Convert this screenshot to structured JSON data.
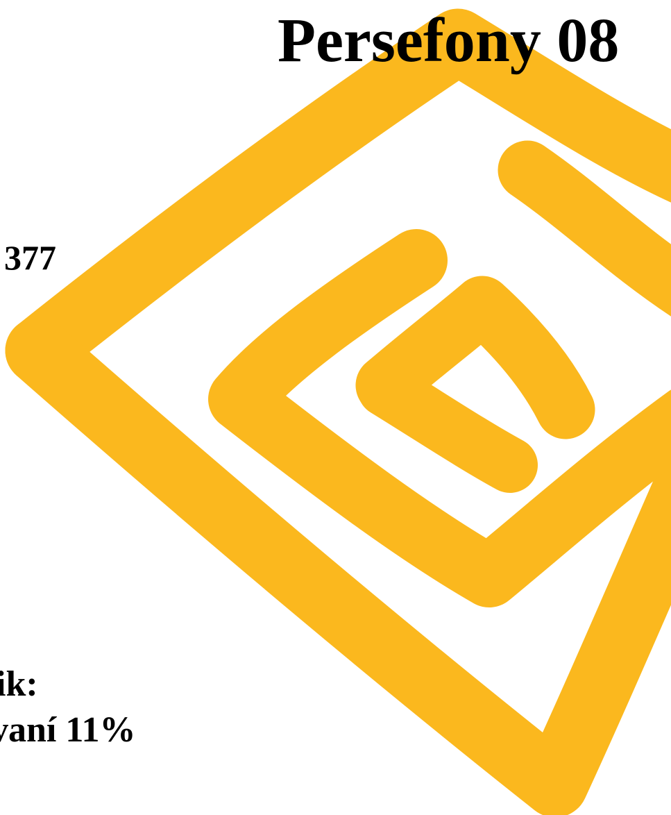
{
  "title": "Persefony 08",
  "number": "377",
  "lines": [
    "ik:",
    "vaní 11%"
  ]
}
